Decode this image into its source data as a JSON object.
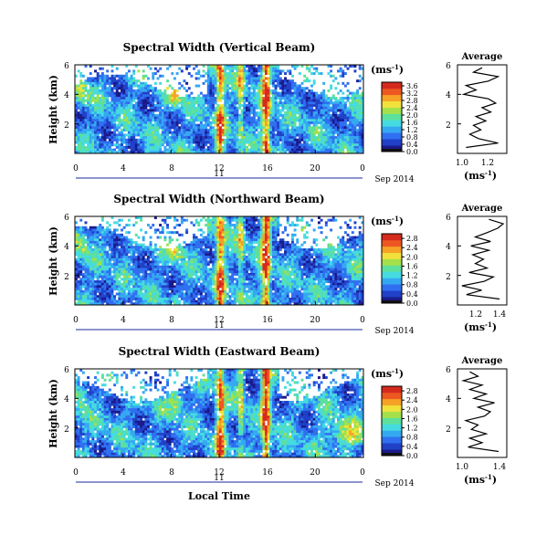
{
  "shared": {
    "xlabel": "Local Time",
    "date_label": "Sep 2014",
    "day_label": "11",
    "ylabel": "Height (km)",
    "unit_label": "(ms",
    "unit_exp": "-1",
    "unit_close": ")",
    "avg_title": "Average",
    "colormap": [
      "#1a1a8c",
      "#2040c8",
      "#2f6ff0",
      "#35a8f2",
      "#45dbe0",
      "#5ce09c",
      "#a4e04a",
      "#f0e23a",
      "#f5a226",
      "#ee5722",
      "#d42a1c"
    ]
  },
  "chart_data": [
    {
      "type": "heatmap",
      "title": "Spectral Width (Vertical Beam)",
      "x_ticks": [
        "0",
        "4",
        "8",
        "12",
        "16",
        "20",
        "0"
      ],
      "xlim": [
        0,
        24
      ],
      "y_ticks": [
        "6",
        "4",
        "2"
      ],
      "ylim": [
        0,
        6
      ],
      "colorbar_ticks": [
        "3.6",
        "3.2",
        "2.8",
        "2.4",
        "2.0",
        "1.6",
        "1.2",
        "0.8",
        "0.4",
        "0.0"
      ],
      "colorbar_range": [
        0,
        3.8
      ],
      "avg_x_ticks": [
        "1.0",
        "1.2"
      ],
      "avg_xlim": [
        0.95,
        1.35
      ],
      "avg_y_ticks": [
        "6",
        "4",
        "2"
      ],
      "profile": {
        "heights": [
          0.4,
          0.7,
          1.0,
          1.3,
          1.6,
          1.9,
          2.2,
          2.5,
          2.8,
          3.1,
          3.4,
          3.7,
          4.0,
          4.3,
          4.6,
          4.9,
          5.2,
          5.5,
          5.8
        ],
        "values": [
          1.02,
          1.28,
          1.12,
          1.05,
          1.14,
          1.08,
          1.18,
          1.1,
          1.22,
          1.15,
          1.26,
          1.2,
          1.0,
          1.1,
          1.02,
          1.2,
          1.28,
          1.08,
          1.15
        ]
      }
    },
    {
      "type": "heatmap",
      "title": "Spectral Width (Northward Beam)",
      "x_ticks": [
        "0",
        "4",
        "8",
        "12",
        "16",
        "20",
        "0"
      ],
      "xlim": [
        0,
        24
      ],
      "y_ticks": [
        "6",
        "4",
        "2"
      ],
      "ylim": [
        0,
        6
      ],
      "colorbar_ticks": [
        "2.8",
        "2.4",
        "2.0",
        "1.6",
        "1.2",
        "0.8",
        "0.4",
        "0.0"
      ],
      "colorbar_range": [
        0,
        3.0
      ],
      "avg_x_ticks": [
        "1.2",
        "1.4"
      ],
      "avg_xlim": [
        0.95,
        1.5
      ],
      "avg_y_ticks": [
        "6",
        "4",
        "2"
      ],
      "profile": {
        "heights": [
          0.4,
          0.7,
          1.0,
          1.3,
          1.6,
          1.9,
          2.2,
          2.5,
          2.8,
          3.1,
          3.4,
          3.7,
          4.0,
          4.3,
          4.6,
          4.9,
          5.2,
          5.5,
          5.8
        ],
        "values": [
          1.42,
          1.05,
          1.22,
          1.0,
          1.25,
          1.35,
          1.08,
          1.28,
          1.15,
          1.24,
          1.12,
          1.3,
          1.1,
          1.32,
          1.15,
          1.28,
          1.4,
          1.46,
          1.3
        ]
      }
    },
    {
      "type": "heatmap",
      "title": "Spectral Width (Eastward Beam)",
      "x_ticks": [
        "0",
        "4",
        "8",
        "12",
        "16",
        "20",
        "0"
      ],
      "xlim": [
        0,
        24
      ],
      "y_ticks": [
        "6",
        "4",
        "2"
      ],
      "ylim": [
        0,
        6
      ],
      "colorbar_ticks": [
        "2.8",
        "2.4",
        "2.0",
        "1.6",
        "1.2",
        "0.8",
        "0.4",
        "0.0"
      ],
      "colorbar_range": [
        0,
        3.0
      ],
      "avg_x_ticks": [
        "1.0",
        "1.4"
      ],
      "avg_xlim": [
        0.95,
        1.55
      ],
      "avg_y_ticks": [
        "6",
        "4",
        "2"
      ],
      "profile": {
        "heights": [
          0.4,
          0.7,
          1.0,
          1.3,
          1.6,
          1.9,
          2.2,
          2.5,
          2.8,
          3.1,
          3.4,
          3.7,
          4.0,
          4.3,
          4.6,
          4.9,
          5.2,
          5.5,
          5.8
        ],
        "values": [
          1.45,
          1.08,
          1.25,
          1.1,
          1.3,
          1.12,
          1.2,
          1.05,
          1.28,
          1.35,
          1.2,
          1.4,
          1.15,
          1.3,
          1.1,
          1.25,
          1.02,
          1.2,
          1.1
        ]
      }
    }
  ]
}
